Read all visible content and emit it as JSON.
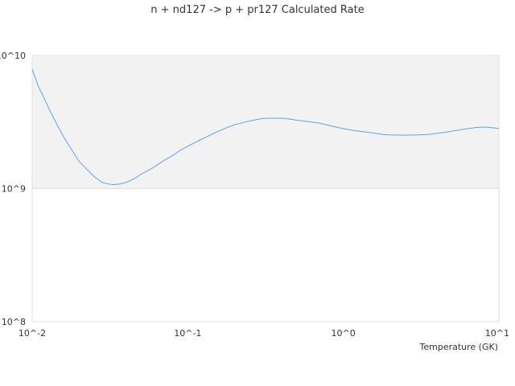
{
  "chart_data": {
    "type": "line",
    "title": "n + nd127 -> p + pr127 Calculated Rate",
    "xlabel": "Temperature (GK)",
    "ylabel": "",
    "x_scale": "log",
    "y_scale": "log",
    "xlim": [
      0.01,
      10
    ],
    "ylim": [
      100000000,
      10000000000
    ],
    "x_tick_values": [
      0.01,
      0.1,
      1,
      10
    ],
    "x_tick_labels": [
      "10^-2",
      "10^-1",
      "10^0",
      "10^1"
    ],
    "y_tick_values": [
      100000000,
      1000000000,
      10000000000
    ],
    "y_tick_labels": [
      "10^8",
      "10^9",
      "10^10"
    ],
    "shaded_band": [
      1000000000,
      10000000000
    ],
    "colors": {
      "line": "#5ba3e8",
      "band": "#f2f2f2",
      "border": "#e0e0e0"
    },
    "series": [
      {
        "x": [
          0.01,
          0.011,
          0.012,
          0.013,
          0.014,
          0.015,
          0.016,
          0.018,
          0.02,
          0.022,
          0.025,
          0.028,
          0.03,
          0.033,
          0.036,
          0.04,
          0.045,
          0.05,
          0.06,
          0.07,
          0.08,
          0.09,
          0.1,
          0.12,
          0.15,
          0.18,
          0.2,
          0.25,
          0.3,
          0.35,
          0.4,
          0.45,
          0.5,
          0.6,
          0.7,
          0.8,
          0.9,
          1.0,
          1.2,
          1.5,
          1.8,
          2.0,
          2.5,
          3.0,
          3.5,
          4.0,
          4.5,
          5.0,
          6.0,
          7.0,
          8.0,
          9.0,
          10.0
        ],
        "values": [
          7900000000.0,
          5800000000.0,
          4700000000.0,
          3850000000.0,
          3250000000.0,
          2780000000.0,
          2420000000.0,
          1950000000.0,
          1600000000.0,
          1430000000.0,
          1230000000.0,
          1120000000.0,
          1090000000.0,
          1070000000.0,
          1080000000.0,
          1110000000.0,
          1180000000.0,
          1280000000.0,
          1440000000.0,
          1620000000.0,
          1770000000.0,
          1950000000.0,
          2080000000.0,
          2320000000.0,
          2630000000.0,
          2880000000.0,
          3020000000.0,
          3220000000.0,
          3360000000.0,
          3380000000.0,
          3380000000.0,
          3330000000.0,
          3270000000.0,
          3180000000.0,
          3110000000.0,
          2990000000.0,
          2900000000.0,
          2820000000.0,
          2720000000.0,
          2630000000.0,
          2550000000.0,
          2530000000.0,
          2520000000.0,
          2530000000.0,
          2550000000.0,
          2600000000.0,
          2650000000.0,
          2700000000.0,
          2800000000.0,
          2870000000.0,
          2900000000.0,
          2870000000.0,
          2830000000.0
        ]
      }
    ]
  }
}
